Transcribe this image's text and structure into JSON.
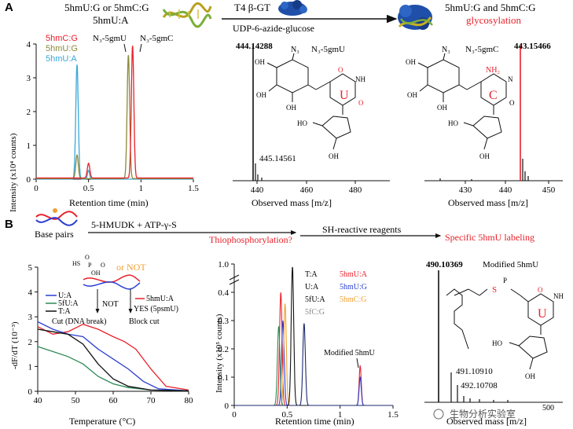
{
  "panel_a": {
    "letter": "A",
    "substrate_line1": "5hmU:G  or  5hmC:G",
    "substrate_line2": "5hmU:A",
    "enzyme": "T4 β-GT",
    "cofactor": "UDP-6-azide-glucose",
    "product_line": "5hmU:G and 5hmC:G",
    "product_label": "glycosylation",
    "chromatogram": {
      "ylabel": "Intensity (x10⁴ counts)",
      "xlabel": "Retention time (min)",
      "xticks": [
        "0",
        "0.5",
        "1",
        "1.5"
      ],
      "yticks": [
        "0",
        "1",
        "2",
        "3",
        "4"
      ],
      "legend": [
        "5hmC:G",
        "5hmU:G",
        "5hmU:A"
      ],
      "peak_labels": [
        "N₃-5gmU",
        "N₃-5gmC"
      ]
    },
    "ms_u": {
      "main_peak": "444.14288",
      "minor_peak": "445.14561",
      "xlabel": "Observed mass [m/z]",
      "xticks": [
        "440",
        "460",
        "480"
      ],
      "compound": "N₃-5gmU",
      "base": "U",
      "azide": "N₃"
    },
    "ms_c": {
      "main_peak": "443.15466",
      "xlabel": "Observed mass [m/z]",
      "xticks": [
        "430",
        "440",
        "450"
      ],
      "compound": "N₃-5gmC",
      "base": "C",
      "amine": "NH₂",
      "azide": "N₃"
    }
  },
  "panel_b": {
    "letter": "B",
    "base_pairs": "Base pairs",
    "step1": "5-HMUDK + ATP-γ-S",
    "step1_result": "Thiophosphorylation?",
    "step2": "SH-reactive reagents",
    "step2_result": "Specific 5hmU labeling",
    "melt": {
      "ylabel": "-dF/dT (10⁻³)",
      "xlabel": "Temperature (°C)",
      "xticks": [
        "40",
        "50",
        "60",
        "70",
        "80"
      ],
      "yticks": [
        "0",
        "1",
        "2",
        "3",
        "4",
        "5"
      ],
      "or_not": "or NOT",
      "not_label": "NOT",
      "yes_label": "YES (5psmU)",
      "cut_label": "Cut (DNA break)",
      "block_label": "Block cut",
      "legend_left": [
        "U:A",
        "5fU:A",
        "T:A"
      ],
      "legend_right": "5hmU:A"
    },
    "chromatogram": {
      "ylabel": "Intensity (x10⁵ counts)",
      "xlabel": "Retention time (min)",
      "xticks": [
        "0",
        "0.5",
        "1",
        "1.5"
      ],
      "yticks": [
        "0",
        "0.1",
        "0.2",
        "0.3",
        "0.4",
        "1.0"
      ],
      "legend_col1": [
        "T:A",
        "U:A",
        "5fU:A",
        "5fC:G"
      ],
      "legend_col2": [
        "5hmU:A",
        "5hmU:G",
        "5hmC:G"
      ],
      "peak_label": "Modified 5hmU"
    },
    "ms": {
      "main_peak": "490.10369",
      "title": "Modified 5hmU",
      "peak2": "491.10910",
      "peak3": "492.10708",
      "xlabel": "Observed mass [m/z]",
      "base": "U",
      "s_label": "S",
      "watermark": "生物分析实验室",
      "tick_partial": "500"
    }
  },
  "colors": {
    "red": "#e8212b",
    "olive": "#8a8a3c",
    "cyan": "#3aa8d8",
    "navy": "#1c2a6e",
    "blue": "#2b3fd1",
    "green": "#2e8b57",
    "orange": "#f0a030",
    "gray": "#888888"
  }
}
